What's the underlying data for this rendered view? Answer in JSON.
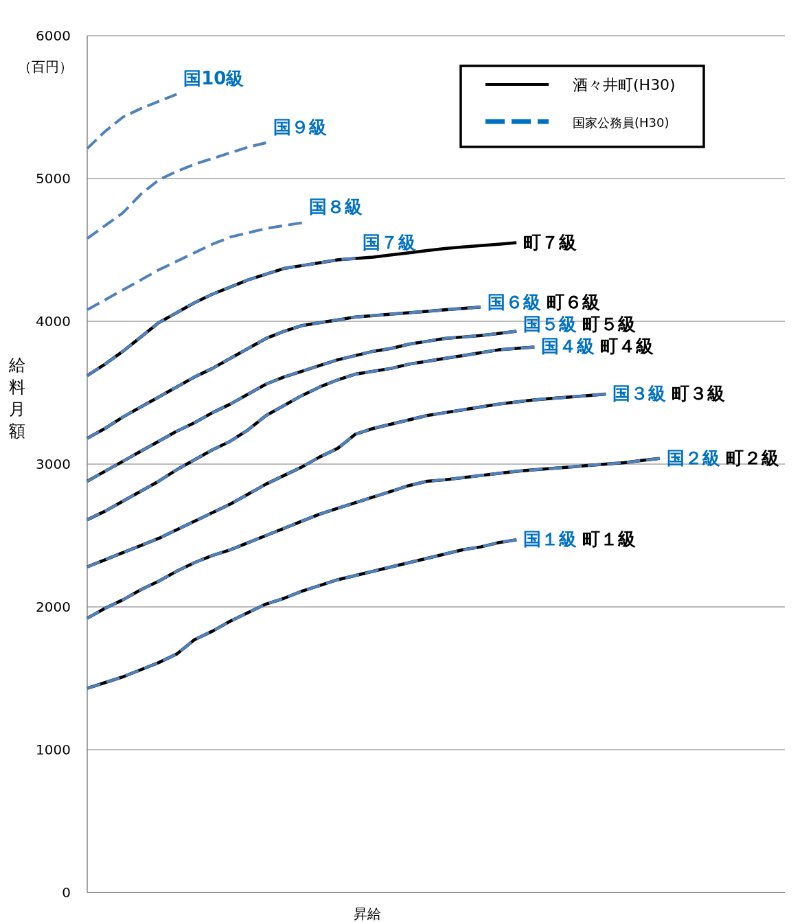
{
  "chart_data": {
    "type": "line",
    "xlabel": "昇給",
    "ylabel": "給料月額",
    "annotations": [
      "（百円）",
      "酒々井町(H30)",
      "国家公務員(H30)"
    ],
    "categories": [
      null,
      null,
      null,
      null,
      null,
      null,
      null,
      null,
      null,
      null,
      null,
      null,
      null,
      null,
      null,
      null,
      null,
      null,
      null,
      null,
      null,
      null,
      null,
      null,
      null,
      null,
      null,
      null,
      null,
      null,
      null,
      null,
      null,
      null,
      null,
      null,
      null,
      null,
      null,
      null
    ],
    "ylim": [
      0,
      6000
    ],
    "yticks": [
      0,
      1000,
      2000,
      3000,
      4000,
      5000,
      6000
    ],
    "grid": "y",
    "legend": "top right",
    "tick_labels": "y",
    "series": [
      {
        "name": "町１級",
        "color": "#000000",
        "line_style": "solid",
        "values": [
          1430,
          1470,
          1510,
          1560,
          1610,
          1670,
          1770,
          1830,
          1900,
          1960,
          2020,
          2060,
          2110,
          2150,
          2190,
          2220,
          2250,
          2280,
          2310,
          2340,
          2370,
          2400,
          2420,
          2450,
          2470,
          null,
          null,
          null,
          null,
          null,
          null,
          null,
          null,
          null,
          null,
          null,
          null,
          null,
          null,
          null
        ]
      },
      {
        "name": "町２級",
        "color": "#000000",
        "line_style": "solid",
        "values": [
          1920,
          1990,
          2050,
          2120,
          2180,
          2250,
          2310,
          2360,
          2400,
          2450,
          2500,
          2550,
          2600,
          2650,
          2690,
          2730,
          2770,
          2810,
          2850,
          2880,
          2890,
          2905,
          2920,
          2935,
          2950,
          2960,
          2970,
          2980,
          2990,
          3000,
          3010,
          3025,
          3040,
          null,
          null,
          null,
          null,
          null,
          null,
          null
        ]
      },
      {
        "name": "町３級",
        "color": "#000000",
        "line_style": "solid",
        "values": [
          2280,
          2330,
          2380,
          2430,
          2480,
          2540,
          2600,
          2660,
          2720,
          2790,
          2860,
          2920,
          2980,
          3050,
          3110,
          3210,
          3250,
          3280,
          3310,
          3340,
          3360,
          3380,
          3400,
          3420,
          3435,
          3450,
          3460,
          3470,
          3480,
          3490,
          null,
          null,
          null,
          null,
          null,
          null,
          null,
          null,
          null,
          null
        ]
      },
      {
        "name": "町４級",
        "color": "#000000",
        "line_style": "solid",
        "values": [
          2610,
          2670,
          2740,
          2810,
          2880,
          2960,
          3030,
          3100,
          3160,
          3240,
          3340,
          3410,
          3480,
          3540,
          3590,
          3630,
          3650,
          3670,
          3700,
          3720,
          3740,
          3760,
          3780,
          3800,
          3810,
          3820,
          null,
          null,
          null,
          null,
          null,
          null,
          null,
          null,
          null,
          null,
          null,
          null,
          null,
          null
        ]
      },
      {
        "name": "町５級",
        "color": "#000000",
        "line_style": "solid",
        "values": [
          2880,
          2950,
          3020,
          3090,
          3160,
          3230,
          3290,
          3360,
          3420,
          3490,
          3560,
          3610,
          3650,
          3690,
          3730,
          3760,
          3790,
          3810,
          3840,
          3860,
          3880,
          3890,
          3900,
          3915,
          3930,
          null,
          null,
          null,
          null,
          null,
          null,
          null,
          null,
          null,
          null,
          null,
          null,
          null,
          null,
          null
        ]
      },
      {
        "name": "町６級",
        "color": "#000000",
        "line_style": "solid",
        "values": [
          3180,
          3250,
          3330,
          3400,
          3470,
          3540,
          3610,
          3670,
          3740,
          3810,
          3880,
          3930,
          3970,
          3990,
          4010,
          4030,
          4040,
          4050,
          4060,
          4070,
          4080,
          4090,
          4100,
          null,
          null,
          null,
          null,
          null,
          null,
          null,
          null,
          null,
          null,
          null,
          null,
          null,
          null,
          null,
          null,
          null
        ]
      },
      {
        "name": "町７級",
        "color": "#000000",
        "line_style": "solid",
        "values": [
          3620,
          3700,
          3790,
          3890,
          3990,
          4060,
          4130,
          4190,
          4240,
          4290,
          4330,
          4370,
          4390,
          4410,
          4430,
          4440,
          4450,
          4465,
          4480,
          4495,
          4510,
          4520,
          4530,
          4540,
          4550,
          null,
          null,
          null,
          null,
          null,
          null,
          null,
          null,
          null,
          null,
          null,
          null,
          null,
          null,
          null
        ]
      },
      {
        "name": "国１級",
        "color": "#4f81bd",
        "line_style": "dashed",
        "values": [
          1430,
          1470,
          1510,
          1560,
          1610,
          1670,
          1770,
          1830,
          1900,
          1960,
          2020,
          2060,
          2110,
          2150,
          2190,
          2220,
          2250,
          2280,
          2310,
          2340,
          2370,
          2400,
          2420,
          2450,
          2470,
          null,
          null,
          null,
          null,
          null,
          null,
          null,
          null,
          null,
          null,
          null,
          null,
          null,
          null,
          null
        ]
      },
      {
        "name": "国２級",
        "color": "#4f81bd",
        "line_style": "dashed",
        "values": [
          1920,
          1990,
          2050,
          2120,
          2180,
          2250,
          2310,
          2360,
          2400,
          2450,
          2500,
          2550,
          2600,
          2650,
          2690,
          2730,
          2770,
          2810,
          2850,
          2880,
          2890,
          2905,
          2920,
          2935,
          2950,
          2960,
          2970,
          2980,
          2990,
          3000,
          3010,
          3025,
          3040,
          null,
          null,
          null,
          null,
          null,
          null,
          null
        ]
      },
      {
        "name": "国３級",
        "color": "#4f81bd",
        "line_style": "dashed",
        "values": [
          2280,
          2330,
          2380,
          2430,
          2480,
          2540,
          2600,
          2660,
          2720,
          2790,
          2860,
          2920,
          2980,
          3050,
          3110,
          3210,
          3250,
          3280,
          3310,
          3340,
          3360,
          3380,
          3400,
          3420,
          3435,
          3450,
          3460,
          3470,
          3480,
          3490,
          null,
          null,
          null,
          null,
          null,
          null,
          null,
          null,
          null,
          null
        ]
      },
      {
        "name": "国４級",
        "color": "#4f81bd",
        "line_style": "dashed",
        "values": [
          2610,
          2670,
          2740,
          2810,
          2880,
          2960,
          3030,
          3100,
          3160,
          3240,
          3340,
          3410,
          3480,
          3540,
          3590,
          3630,
          3650,
          3670,
          3700,
          3720,
          3740,
          3760,
          3780,
          3800,
          3810,
          3820,
          null,
          null,
          null,
          null,
          null,
          null,
          null,
          null,
          null,
          null,
          null,
          null,
          null,
          null
        ]
      },
      {
        "name": "国５級",
        "color": "#4f81bd",
        "line_style": "dashed",
        "values": [
          2880,
          2950,
          3020,
          3090,
          3160,
          3230,
          3290,
          3360,
          3420,
          3490,
          3560,
          3610,
          3650,
          3690,
          3730,
          3760,
          3790,
          3810,
          3840,
          3860,
          3880,
          3890,
          3900,
          3915,
          3930,
          null,
          null,
          null,
          null,
          null,
          null,
          null,
          null,
          null,
          null,
          null,
          null,
          null,
          null,
          null
        ]
      },
      {
        "name": "国６級",
        "color": "#4f81bd",
        "line_style": "dashed",
        "values": [
          3180,
          3250,
          3330,
          3400,
          3470,
          3540,
          3610,
          3670,
          3740,
          3810,
          3880,
          3930,
          3970,
          3990,
          4010,
          4030,
          4040,
          4050,
          4060,
          4070,
          4080,
          4090,
          4100,
          null,
          null,
          null,
          null,
          null,
          null,
          null,
          null,
          null,
          null,
          null,
          null,
          null,
          null,
          null,
          null,
          null
        ]
      },
      {
        "name": "国７級",
        "color": "#4f81bd",
        "line_style": "dashed",
        "values": [
          3620,
          3700,
          3790,
          3890,
          3990,
          4060,
          4130,
          4190,
          4240,
          4290,
          4330,
          4370,
          4390,
          4410,
          4430,
          4440,
          null,
          null,
          null,
          null,
          null,
          null,
          null,
          null,
          null,
          null,
          null,
          null,
          null,
          null,
          null,
          null,
          null,
          null,
          null,
          null,
          null,
          null,
          null,
          null
        ]
      },
      {
        "name": "国８級",
        "color": "#4f81bd",
        "line_style": "dashed",
        "values": [
          4080,
          4150,
          4220,
          4290,
          4360,
          4420,
          4480,
          4540,
          4590,
          4620,
          4650,
          4670,
          4690,
          null,
          null,
          null,
          null,
          null,
          null,
          null,
          null,
          null,
          null,
          null,
          null,
          null,
          null,
          null,
          null,
          null,
          null,
          null,
          null,
          null,
          null,
          null,
          null,
          null,
          null,
          null
        ]
      },
      {
        "name": "国９級",
        "color": "#4f81bd",
        "line_style": "dashed",
        "values": [
          4580,
          4670,
          4760,
          4890,
          4990,
          5050,
          5100,
          5140,
          5180,
          5220,
          5250,
          null,
          null,
          null,
          null,
          null,
          null,
          null,
          null,
          null,
          null,
          null,
          null,
          null,
          null,
          null,
          null,
          null,
          null,
          null,
          null,
          null,
          null,
          null,
          null,
          null,
          null,
          null,
          null,
          null
        ]
      },
      {
        "name": "国10級",
        "color": "#4f81bd",
        "line_style": "dashed",
        "values": [
          5210,
          5330,
          5430,
          5490,
          5540,
          5590,
          null,
          null,
          null,
          null,
          null,
          null,
          null,
          null,
          null,
          null,
          null,
          null,
          null,
          null,
          null,
          null,
          null,
          null,
          null,
          null,
          null,
          null,
          null,
          null,
          null,
          null,
          null,
          null,
          null,
          null,
          null,
          null,
          null,
          null
        ]
      }
    ]
  }
}
